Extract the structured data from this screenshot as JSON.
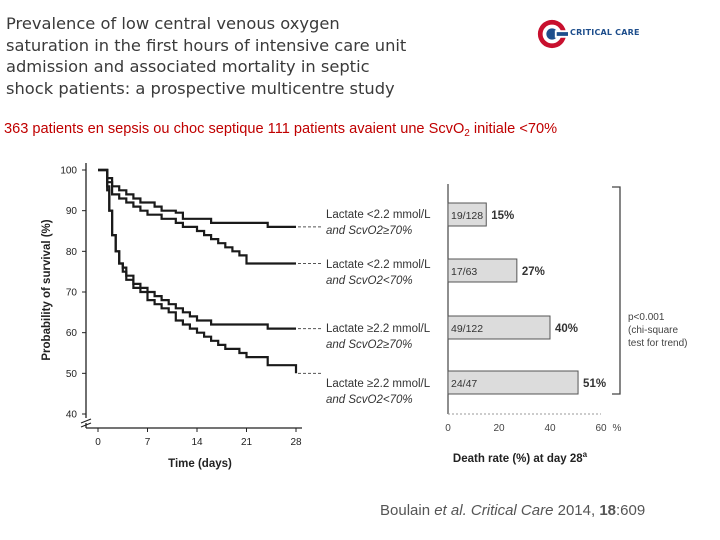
{
  "slide": {
    "title_lines": [
      "Prevalence of low central venous oxygen",
      "saturation in the first hours of intensive care unit",
      "admission and associated mortality in septic",
      "shock patients: a prospective multicentre study"
    ],
    "logo_text": "CRITICAL CARE",
    "subtitle_main": "363 patients en sepsis ou choc septique 111 patients avaient une Scv",
    "subtitle_o": "O",
    "subtitle_sub": "2",
    "subtitle_end": " initiale <70%",
    "citation": {
      "author": "Boulain ",
      "etal": "et al.",
      "journal": " Critical Care",
      "year": " 2014, ",
      "volume": "18",
      "pages": ":609"
    }
  },
  "chart_data": [
    {
      "type": "line",
      "ylabel": "Probability of survival (%)",
      "xlabel": "Time (days)",
      "xlim": [
        0,
        28
      ],
      "ylim": [
        40,
        100
      ],
      "y_axis_break": true,
      "x_ticks": [
        "0",
        "7",
        "14",
        "21",
        "28"
      ],
      "y_ticks": [
        "100",
        "90",
        "80",
        "70",
        "60",
        "50",
        "40"
      ],
      "series": [
        {
          "name_line1": "Lactate <2.2 mmol/L",
          "name_line2": "and ScvO2≥70%",
          "end_value": 86,
          "x": [
            0,
            1,
            1.3,
            2,
            3,
            4,
            5,
            6,
            7,
            8,
            9,
            10,
            11,
            12,
            14,
            16,
            18,
            21,
            24,
            28
          ],
          "y": [
            100,
            100,
            98,
            96,
            95,
            94,
            93,
            92,
            92,
            91,
            90,
            90,
            89.5,
            88,
            88,
            87,
            87,
            87,
            86,
            86
          ]
        },
        {
          "name_line1": "Lactate <2.2 mmol/L",
          "name_line2": "and ScvO2<70%",
          "end_value": 77,
          "x": [
            0,
            1,
            1.3,
            2,
            3,
            4,
            5,
            6,
            7,
            8,
            9,
            10,
            11,
            12,
            13,
            14,
            15,
            16,
            17,
            18,
            19,
            20,
            21,
            24,
            28
          ],
          "y": [
            100,
            100,
            97,
            94,
            93,
            92,
            91,
            90,
            89,
            89,
            88,
            88,
            87,
            86,
            86,
            85,
            84,
            83,
            82,
            81,
            80,
            79,
            77,
            77,
            77
          ]
        },
        {
          "name_line1": "Lactate ≥2.2 mmol/L",
          "name_line2": "and ScvO2≥70%",
          "end_value": 61,
          "x": [
            0,
            1,
            1.3,
            1.6,
            2,
            2.5,
            3,
            3.5,
            4,
            5,
            6,
            7,
            8,
            9,
            10,
            11,
            12,
            13,
            14,
            16,
            18,
            21,
            24,
            28
          ],
          "y": [
            100,
            100,
            95,
            90,
            84,
            80,
            77,
            76,
            74,
            72,
            71,
            70,
            69,
            68,
            67,
            66,
            65,
            64,
            63,
            62,
            62,
            62,
            61,
            61
          ]
        },
        {
          "name_line1": "Lactate ≥2.2 mmol/L",
          "name_line2": "and ScvO2<70%",
          "end_value": 50,
          "x": [
            0,
            1,
            1.3,
            1.6,
            2,
            2.5,
            3,
            3.5,
            4,
            5,
            6,
            7,
            8,
            9,
            10,
            11,
            12,
            13,
            14,
            15,
            16,
            17,
            18,
            19,
            20,
            21,
            24,
            28
          ],
          "y": [
            100,
            100,
            96,
            90,
            84,
            80,
            77,
            75,
            73,
            71,
            70,
            68,
            67,
            66,
            65,
            63,
            62,
            61,
            60,
            59,
            58,
            57,
            56,
            56,
            55,
            54,
            52,
            50
          ]
        }
      ]
    },
    {
      "type": "bar",
      "orientation": "horizontal",
      "xlabel": "Death rate (%) at day 28",
      "xlabel_superscript": "a",
      "xlim": [
        0,
        60
      ],
      "x_ticks": [
        "0",
        "20",
        "40",
        "60"
      ],
      "x_unit": "%",
      "categories": [
        "19/128",
        "17/63",
        "49/122",
        "24/47"
      ],
      "values": [
        15,
        27,
        40,
        51
      ],
      "value_labels": [
        "15%",
        "27%",
        "40%",
        "51%"
      ],
      "bar_color": "#dcdcdc",
      "annotation": [
        "p<0.001",
        "(chi-square",
        "test for trend)"
      ]
    }
  ]
}
